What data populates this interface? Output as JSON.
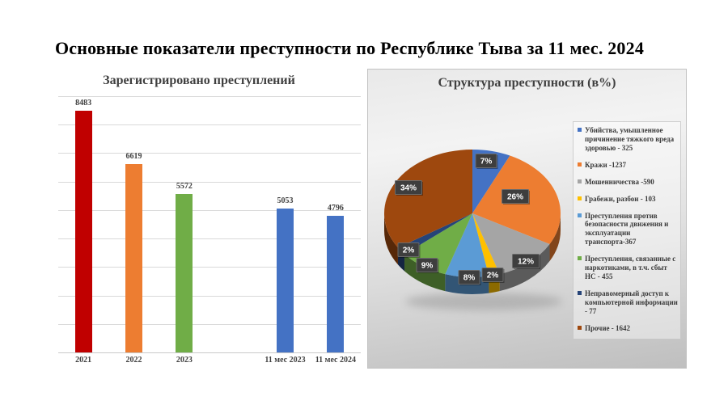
{
  "slide": {
    "title": "Основные показатели преступности по Республике Тыва за 11 мес. 2024"
  },
  "chart_data": [
    {
      "type": "bar",
      "title": "Зарегистрировано преступлений",
      "categories": [
        "2021",
        "2022",
        "2023",
        "",
        "11 мес 2023",
        "11 мес 2024"
      ],
      "values": [
        8483,
        6619,
        5572,
        null,
        5053,
        4796
      ],
      "bar_colors": [
        "#c00000",
        "#ed7d31",
        "#70ad47",
        null,
        "#4472c4",
        "#4472c4"
      ],
      "ylim": [
        0,
        9000
      ],
      "gridline_step": 1000,
      "grid": true,
      "data_labels": true,
      "gridline_color": "#d9d9d9",
      "axis_color": "#c9c9c9"
    },
    {
      "type": "pie",
      "title": "Структура преступности (в%)",
      "style": "3d",
      "start_angle_deg": -90,
      "direction": "clockwise",
      "legend_position": "right",
      "slices": [
        {
          "label": "Убийства, умышленное причинение тяжкого вреда здоровью - 325",
          "count": 325,
          "pct": 7,
          "color": "#4472c4"
        },
        {
          "label": "Кражи -1237",
          "count": 1237,
          "pct": 26,
          "color": "#ed7d31"
        },
        {
          "label": "Мошенничества -590",
          "count": 590,
          "pct": 12,
          "color": "#a5a5a5"
        },
        {
          "label": "Грабежи, разбои - 103",
          "count": 103,
          "pct": 2,
          "color": "#ffc000"
        },
        {
          "label": "Преступления против безопасности движения и эксплуатации транспорта-367",
          "count": 367,
          "pct": 8,
          "color": "#5b9bd5"
        },
        {
          "label": "Преступления, связанные с наркотиками, в т.ч. сбыт НС - 455",
          "count": 455,
          "pct": 9,
          "color": "#70ad47"
        },
        {
          "label": "Неправомерный доступ к компьютерной информации - 77",
          "count": 77,
          "pct": 2,
          "color": "#264478"
        },
        {
          "label": "Прочие - 1642",
          "count": 1642,
          "pct": 34,
          "color": "#9e480e"
        }
      ]
    }
  ]
}
